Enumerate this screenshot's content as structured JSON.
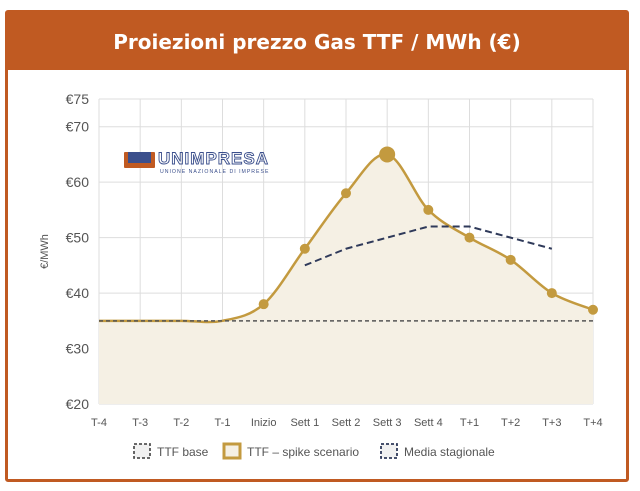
{
  "title": "Proiezioni prezzo Gas TTF / MWh (€)",
  "logo": {
    "name": "UNIMPRESA",
    "tagline": "UNIONE NAZIONALE DI IMPRESE"
  },
  "colors": {
    "accent": "#c05a22",
    "spike_line": "#c39a3f",
    "spike_fill": "#f5f0e4",
    "base_line": "#555555",
    "seasonal_line": "#2f3a5a",
    "grid": "#dddddd",
    "logo_blue": "#3b4f8c"
  },
  "chart_data": {
    "type": "line",
    "title": "Proiezioni prezzo Gas TTF / MWh (€)",
    "ylabel": "€/MWh",
    "xlabel": "",
    "categories": [
      "T-4",
      "T-3",
      "T-2",
      "T-1",
      "Inizio",
      "Sett 1",
      "Sett 2",
      "Sett 3",
      "Sett 4",
      "T+1",
      "T+2",
      "T+3",
      "T+4"
    ],
    "ylim": [
      20,
      75
    ],
    "yticks": [
      20,
      30,
      40,
      50,
      60,
      70,
      75
    ],
    "ytick_labels": [
      "€20",
      "€30",
      "€40",
      "€50",
      "€60",
      "€70",
      "€75"
    ],
    "grid": true,
    "legend_position": "bottom",
    "series": [
      {
        "name": "TTF base",
        "style": "dashed",
        "values": [
          35,
          35,
          35,
          35,
          35,
          35,
          35,
          35,
          35,
          35,
          35,
          35,
          35
        ]
      },
      {
        "name": "TTF – spike scenario",
        "style": "solid-area",
        "values": [
          35,
          35,
          35,
          35,
          38,
          48,
          58,
          65,
          55,
          50,
          46,
          40,
          37
        ],
        "peak_index": 7
      },
      {
        "name": "Media stagionale",
        "style": "dashed",
        "values": [
          null,
          null,
          null,
          null,
          null,
          45,
          48,
          50,
          52,
          52,
          50,
          48,
          null
        ]
      }
    ]
  }
}
